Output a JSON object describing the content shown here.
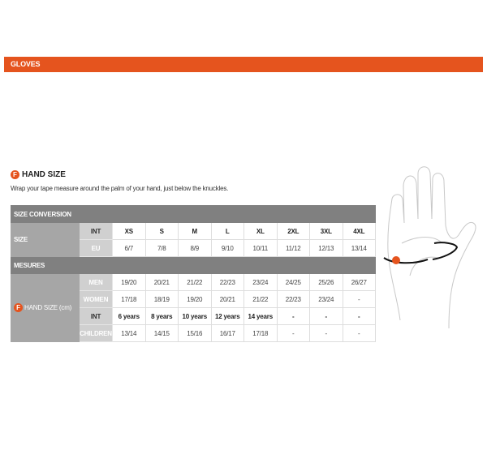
{
  "section_title": "GLOVES",
  "heading": "HAND SIZE",
  "badge_letter": "F",
  "description": "Wrap your tape measure around the palm of your hand, just below the knuckles.",
  "accent_color": "#e5541e",
  "table": {
    "size_conversion": "SIZE CONVERSION",
    "size_label": "SIZE",
    "int_label": "INT",
    "eu_label": "EU",
    "sizes": [
      "XS",
      "S",
      "M",
      "L",
      "XL",
      "2XL",
      "3XL",
      "4XL"
    ],
    "eu": [
      "6/7",
      "7/8",
      "8/9",
      "9/10",
      "10/11",
      "11/12",
      "12/13",
      "13/14"
    ],
    "mesures": "MESURES",
    "hand_size_label": "HAND SIZE (cm)",
    "men_label": "MEN",
    "men": [
      "19/20",
      "20/21",
      "21/22",
      "22/23",
      "23/24",
      "24/25",
      "25/26",
      "26/27"
    ],
    "women_label": "WOMEN",
    "women": [
      "17/18",
      "18/19",
      "19/20",
      "20/21",
      "21/22",
      "22/23",
      "23/24",
      "-"
    ],
    "kids_int_label": "INT",
    "kids_int": [
      "6 years",
      "8 years",
      "10 years",
      "12 years",
      "14 years",
      "-",
      "-",
      "-"
    ],
    "children_label": "CHILDREN",
    "children": [
      "13/14",
      "14/15",
      "15/16",
      "16/17",
      "17/18",
      "-",
      "-",
      "-"
    ]
  }
}
